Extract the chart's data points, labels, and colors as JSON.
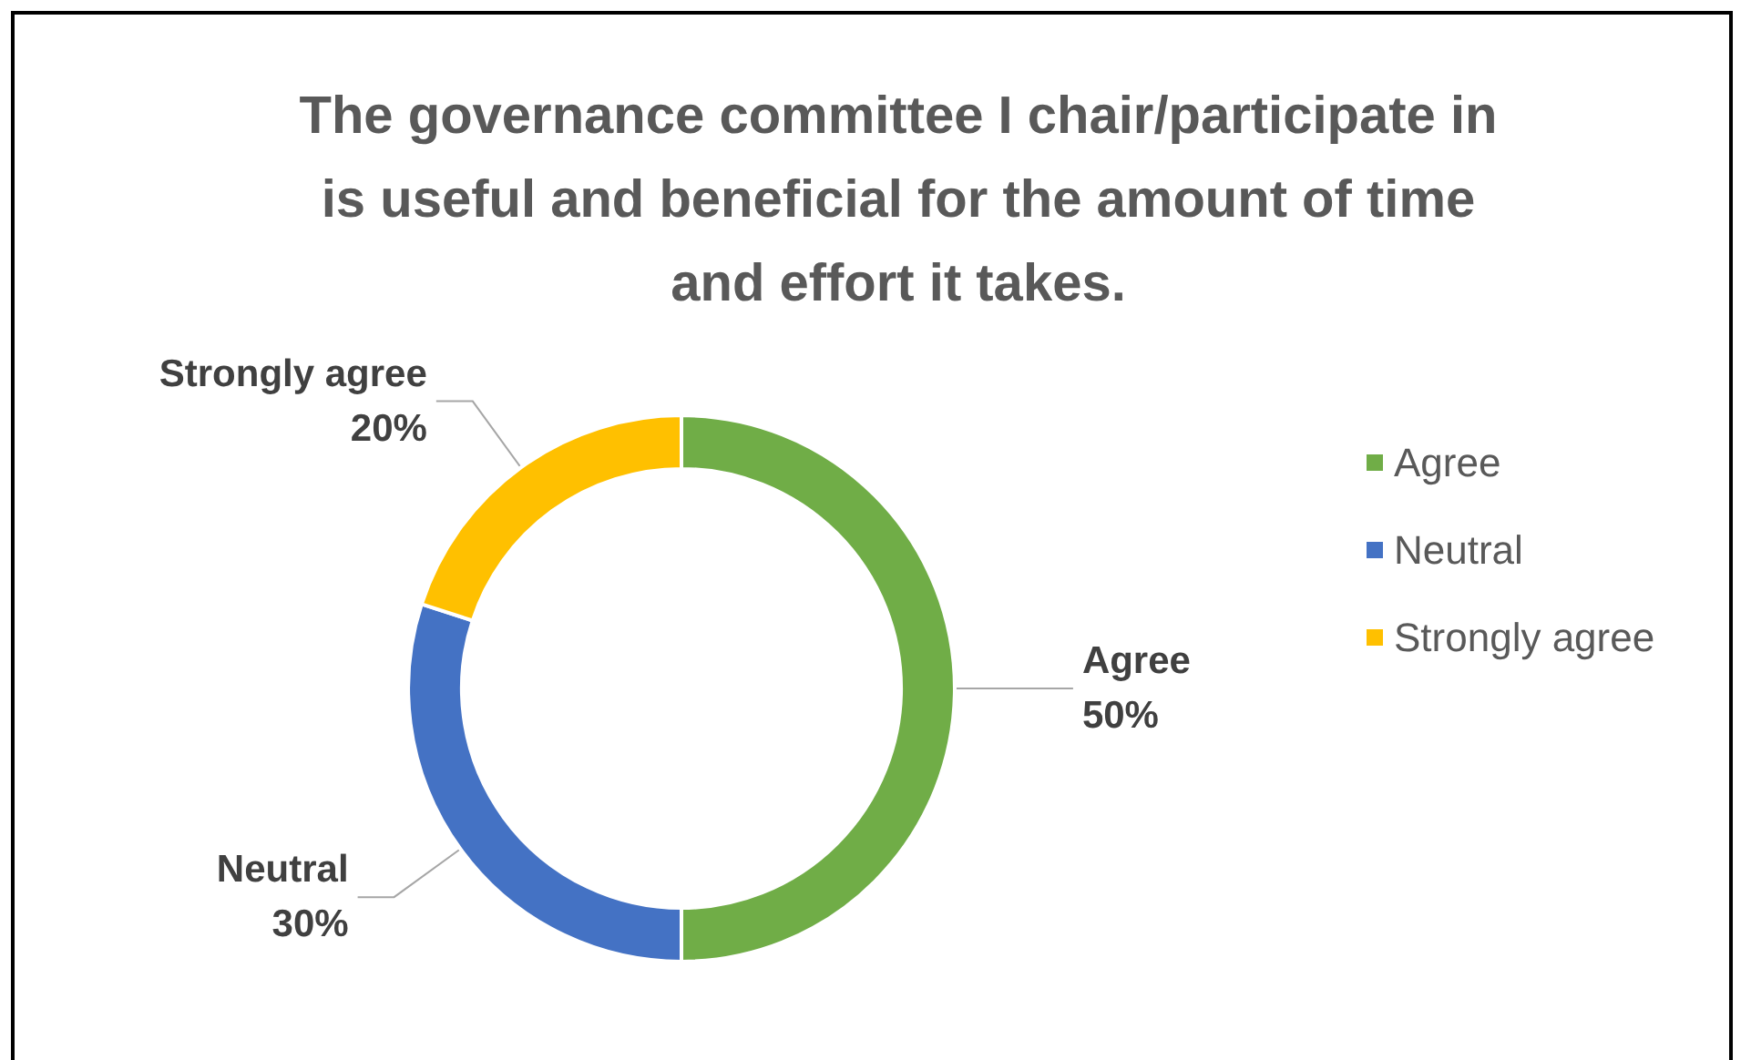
{
  "chart_data": {
    "type": "donut",
    "title": "The governance committee I chair/participate in\nis useful and beneficial for the amount of time\nand effort it takes.",
    "categories": [
      "Agree",
      "Neutral",
      "Strongly agree"
    ],
    "values": [
      50,
      30,
      20
    ],
    "colors": [
      "#70ad47",
      "#4472c4",
      "#ffc000"
    ],
    "value_labels": [
      "50%",
      "30%",
      "20%"
    ],
    "legend": "right"
  }
}
